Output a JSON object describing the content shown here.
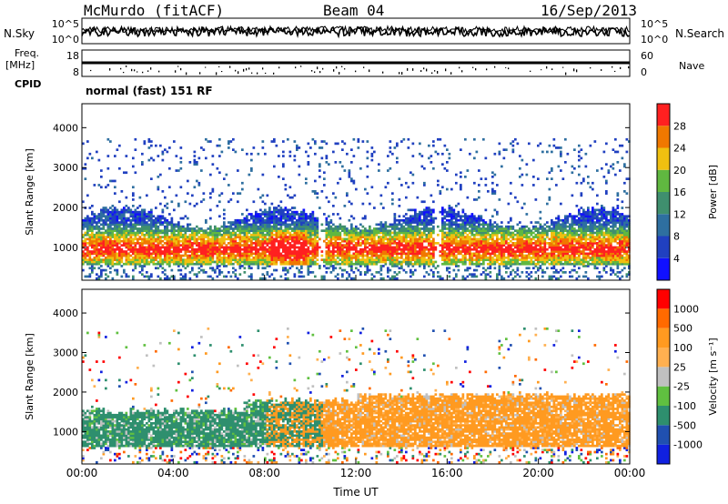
{
  "header": {
    "station": "McMurdo (fitACF)",
    "beam": "Beam 04",
    "date": "16/Sep/2013"
  },
  "side_labels": {
    "nsky": "N.Sky",
    "freq_line1": "Freq.",
    "freq_line2": "[MHz]",
    "cpid": "CPID",
    "nsearch": "N.Search",
    "nave": "Nave",
    "cpid_value": "normal (fast) 151 RF"
  },
  "colors": {
    "power_scale": [
      "#1010ff",
      "#2040c0",
      "#2e6fa0",
      "#3f8f6e",
      "#60b840",
      "#f0c010",
      "#f07800",
      "#ff2020"
    ],
    "velocity_scale": [
      "#ff0000",
      "#ff6a00",
      "#ff9a20",
      "#ffb050",
      "#c0c0c0",
      "#60c040",
      "#2e8f6e",
      "#2050b0",
      "#1020e0"
    ],
    "background": "#ffffff"
  },
  "chart_data": [
    {
      "type": "line",
      "name": "sky-noise-search-panel",
      "left_ticks": [
        "10^5",
        "10^0"
      ],
      "right_ticks": [
        "10^5",
        "10^0"
      ],
      "left_label": "N.Sky",
      "right_label": "N.Search"
    },
    {
      "type": "line",
      "name": "frequency-nave-panel",
      "left_ticks": [
        "18",
        "8"
      ],
      "right_ticks": [
        "60",
        "0"
      ],
      "left_label": "Freq. [MHz]",
      "right_label": "Nave"
    },
    {
      "type": "heatmap",
      "name": "power-panel",
      "ylabel": "Slant Range [km]",
      "y_ticks": [
        "1000",
        "2000",
        "3000",
        "4000"
      ],
      "ylim": [
        180,
        4600
      ],
      "xlim_hours": [
        0,
        24
      ],
      "colorbar_label": "Power [dB]",
      "colorbar_ticks": [
        "4",
        "8",
        "12",
        "16",
        "20",
        "24",
        "28"
      ]
    },
    {
      "type": "heatmap",
      "name": "velocity-panel",
      "ylabel": "Slant Range [km]",
      "y_ticks": [
        "1000",
        "2000",
        "3000",
        "4000"
      ],
      "ylim": [
        180,
        4600
      ],
      "xlim_hours": [
        0,
        24
      ],
      "xlabel": "Time UT",
      "x_ticks": [
        "00:00",
        "04:00",
        "08:00",
        "12:00",
        "16:00",
        "20:00",
        "00:00"
      ],
      "colorbar_label": "Velocity [m s⁻¹]",
      "colorbar_ticks": [
        "1000",
        "500",
        "100",
        "25",
        "-25",
        "-100",
        "-500",
        "-1000"
      ]
    }
  ]
}
